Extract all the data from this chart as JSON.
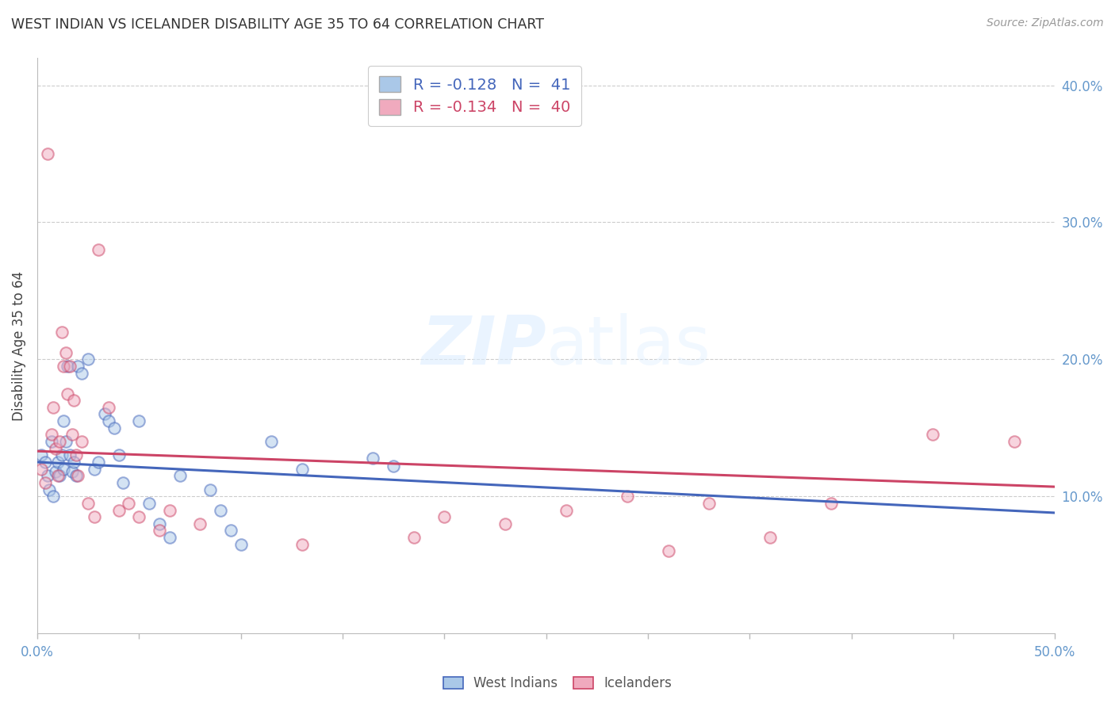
{
  "title": "WEST INDIAN VS ICELANDER DISABILITY AGE 35 TO 64 CORRELATION CHART",
  "source": "Source: ZipAtlas.com",
  "ylabel": "Disability Age 35 to 64",
  "xlim": [
    0,
    0.5
  ],
  "ylim": [
    0,
    0.42
  ],
  "xticks_labeled": [
    0.0,
    0.5
  ],
  "xticks_minor": [
    0.05,
    0.1,
    0.15,
    0.2,
    0.25,
    0.3,
    0.35,
    0.4,
    0.45
  ],
  "yticks_right": [
    0.1,
    0.2,
    0.3,
    0.4
  ],
  "background_color": "#ffffff",
  "grid_color": "#cccccc",
  "west_indian_color": "#aac8e8",
  "icelander_color": "#f0aabe",
  "west_indian_line_color": "#4466bb",
  "icelander_line_color": "#cc4466",
  "legend_r1": "R = -0.128",
  "legend_n1": "41",
  "legend_r2": "R = -0.134",
  "legend_n2": "40",
  "west_indian_label": "West Indians",
  "icelander_label": "Icelanders",
  "title_color": "#333333",
  "source_color": "#999999",
  "axis_color": "#bbbbbb",
  "right_tick_color": "#6699cc",
  "west_indians_x": [
    0.002,
    0.004,
    0.005,
    0.006,
    0.007,
    0.008,
    0.009,
    0.01,
    0.011,
    0.012,
    0.013,
    0.013,
    0.014,
    0.015,
    0.016,
    0.017,
    0.018,
    0.019,
    0.02,
    0.022,
    0.025,
    0.028,
    0.03,
    0.033,
    0.035,
    0.038,
    0.04,
    0.042,
    0.05,
    0.055,
    0.06,
    0.065,
    0.07,
    0.085,
    0.09,
    0.095,
    0.1,
    0.115,
    0.13,
    0.165,
    0.175
  ],
  "west_indians_y": [
    0.13,
    0.125,
    0.115,
    0.105,
    0.14,
    0.1,
    0.118,
    0.125,
    0.115,
    0.13,
    0.12,
    0.155,
    0.14,
    0.195,
    0.13,
    0.118,
    0.125,
    0.115,
    0.195,
    0.19,
    0.2,
    0.12,
    0.125,
    0.16,
    0.155,
    0.15,
    0.13,
    0.11,
    0.155,
    0.095,
    0.08,
    0.07,
    0.115,
    0.105,
    0.09,
    0.075,
    0.065,
    0.14,
    0.12,
    0.128,
    0.122
  ],
  "icelanders_x": [
    0.002,
    0.004,
    0.005,
    0.007,
    0.008,
    0.009,
    0.01,
    0.011,
    0.012,
    0.013,
    0.014,
    0.015,
    0.016,
    0.017,
    0.018,
    0.019,
    0.02,
    0.022,
    0.025,
    0.028,
    0.03,
    0.035,
    0.04,
    0.045,
    0.05,
    0.06,
    0.065,
    0.08,
    0.13,
    0.185,
    0.2,
    0.23,
    0.26,
    0.29,
    0.31,
    0.33,
    0.36,
    0.39,
    0.44,
    0.48
  ],
  "icelanders_y": [
    0.12,
    0.11,
    0.35,
    0.145,
    0.165,
    0.135,
    0.115,
    0.14,
    0.22,
    0.195,
    0.205,
    0.175,
    0.195,
    0.145,
    0.17,
    0.13,
    0.115,
    0.14,
    0.095,
    0.085,
    0.28,
    0.165,
    0.09,
    0.095,
    0.085,
    0.075,
    0.09,
    0.08,
    0.065,
    0.07,
    0.085,
    0.08,
    0.09,
    0.1,
    0.06,
    0.095,
    0.07,
    0.095,
    0.145,
    0.14
  ],
  "blue_line_x": [
    0.0,
    0.5
  ],
  "blue_line_y": [
    0.125,
    0.088
  ],
  "pink_line_x": [
    0.0,
    0.5
  ],
  "pink_line_y": [
    0.133,
    0.107
  ],
  "marker_size": 110,
  "marker_alpha": 0.5,
  "marker_linewidth": 1.5
}
